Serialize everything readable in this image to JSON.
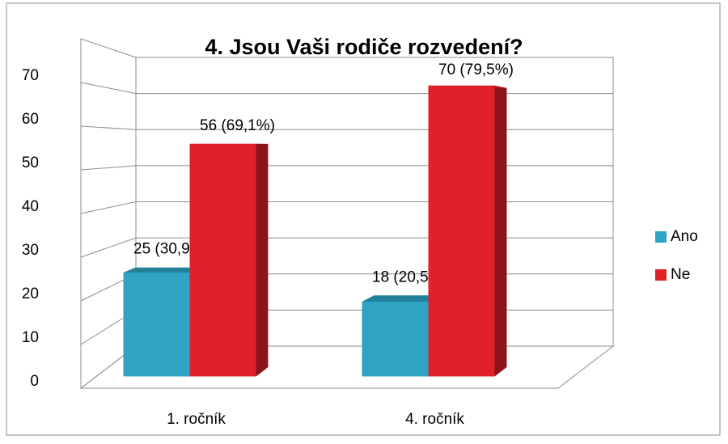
{
  "chart_data": {
    "type": "bar3d",
    "title": "4. Jsou Vaši rodiče rozvedení?",
    "categories": [
      "1. ročník",
      "4. ročník"
    ],
    "series": [
      {
        "name": "Ano",
        "color": "#2ea3c4",
        "values": [
          25,
          18
        ],
        "value_labels": [
          "25 (30,9%)",
          "18 (20,5%)"
        ]
      },
      {
        "name": "Ne",
        "color": "#e0202a",
        "values": [
          56,
          70
        ],
        "value_labels": [
          "56 (69,1%)",
          "70 (79,5%)"
        ]
      }
    ],
    "ylim": [
      0,
      80
    ],
    "yticks": [
      0,
      10,
      20,
      30,
      40,
      50,
      60,
      70
    ],
    "grid": true,
    "legend": "right"
  }
}
